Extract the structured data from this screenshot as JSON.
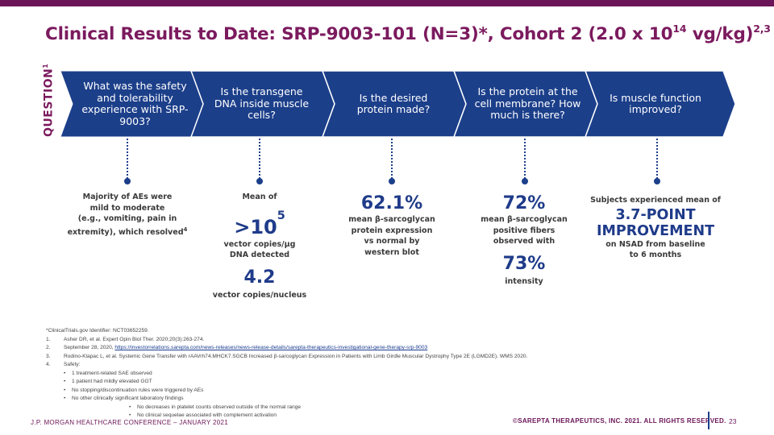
{
  "colors": {
    "brand_purple": "#7b1a5e",
    "navy": "#1c3f8a",
    "chevron_fill": "#1c3f8a",
    "chevron_edge": "#ffffff"
  },
  "title": {
    "main": "Clinical Results to Date: SRP-9003-101 (N=3)*, Cohort 2 (2.0 x 10",
    "sup1": "14",
    "after": " vg/kg)",
    "sup2": "2,3"
  },
  "question_label": {
    "text": "QUESTION",
    "sup": "1"
  },
  "questions": [
    "What was the safety and tolerability experience with SRP-9003?",
    "Is the transgene DNA inside muscle cells?",
    "Is the desired protein made?",
    "Is the protein at the cell membrane? How much is there?",
    "Is muscle function improved?"
  ],
  "results": {
    "col1": {
      "line1": "Majority of AEs were",
      "line2": "mild to moderate",
      "line3": "(e.g., vomiting, pain in",
      "line4": "extremity), which resolved",
      "sup": "4"
    },
    "col2": {
      "pre": "Mean of",
      "big1": ">10",
      "big1_sup": "5",
      "post1a": "vector copies/µg",
      "post1b": "DNA detected",
      "big2": "4.2",
      "post2": "vector copies/nucleus"
    },
    "col3": {
      "big": "62.1%",
      "l1": "mean β-sarcoglycan",
      "l2": "protein expression",
      "l3": "vs normal by",
      "l4": "western blot"
    },
    "col4": {
      "big1": "72%",
      "l1": "mean β-sarcoglycan",
      "l2": "positive fibers",
      "l3": "observed with",
      "big2": "73%",
      "l4": "intensity"
    },
    "col5": {
      "pre": "Subjects experienced mean of",
      "big1": "3.7-POINT",
      "big2": "IMPROVEMENT",
      "l1": "on NSAD from baseline",
      "l2": "to 6 months"
    }
  },
  "footnotes": {
    "star": "*ClinicalTrials.gov Identifier: NCT03652259.",
    "items": [
      {
        "num": "1.",
        "text": "Asher DR, et al. Expert Opin Biol Ther. 2020;20(3):263-274."
      },
      {
        "num": "2.",
        "text_pre": "September 28, 2020, ",
        "link": "https://investorrelations.sarepta.com/news-releases/news-release-details/sarepta-therapeutics-investigational-gene-therapy-srp-9003"
      },
      {
        "num": "3.",
        "text": "Rodino-Klapac L, et al. Systemic Gene Transfer with rAAVrh74.MHCK7.SGCB Increased  β-sarcoglycan Expression in Patients with Limb Girdle Muscular Dystrophy Type 2E (LGMD2E). WMS 2020."
      },
      {
        "num": "4.",
        "text": "Safety:"
      }
    ],
    "bullets": [
      "1 treatment-related SAE observed",
      "1 patient had mildly elevated GGT",
      "No stopping/discontinuation rules were triggered by AEs",
      "No other clinically significant laboratory findings"
    ],
    "sub_bullets": [
      "No decreases in platelet counts observed outside of the normal range",
      "No clinical sequelae associated with complement activation"
    ]
  },
  "footer": {
    "left": "J.P. MORGAN HEALTHCARE CONFERENCE – JANUARY 2021",
    "right": "©SAREPTA THERAPEUTICS, INC. 2021.  ALL RIGHTS RESERVED.",
    "page": "23"
  }
}
